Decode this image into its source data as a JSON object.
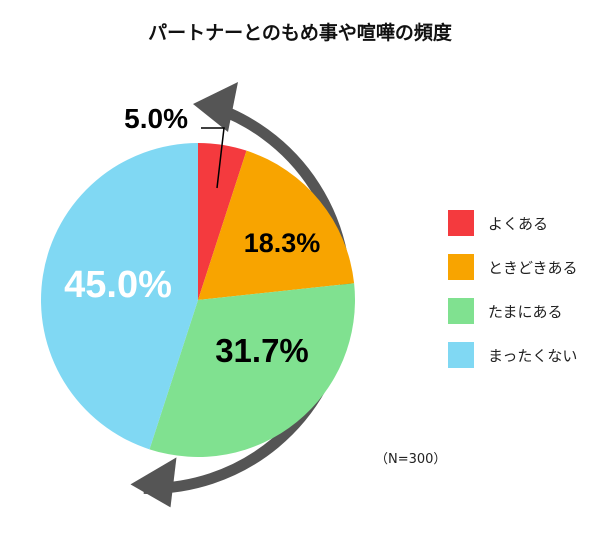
{
  "chart_data": {
    "type": "pie",
    "title": "パートナーとのもめ事や喧嘩の頻度",
    "categories": [
      "よくある",
      "ときどきある",
      "たまにある",
      "まったくない"
    ],
    "values": [
      5.0,
      18.3,
      31.7,
      45.0
    ],
    "labels": [
      "5.0%",
      "18.3%",
      "31.7%",
      "45.0%"
    ],
    "colors": [
      "#f43a3e",
      "#f8a400",
      "#80e190",
      "#80d8f3"
    ],
    "legend_position": "right",
    "note": "（N=300）"
  }
}
